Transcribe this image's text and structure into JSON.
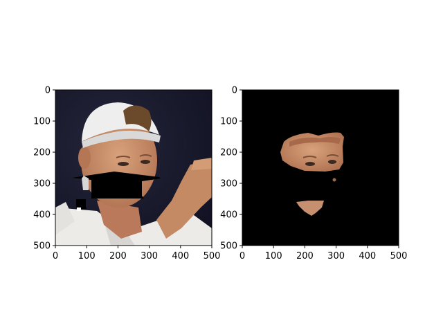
{
  "chart_data": [
    {
      "type": "image",
      "title": "",
      "xlabel": "",
      "ylabel": "",
      "xlim": [
        0,
        500
      ],
      "ylim": [
        500,
        0
      ],
      "x_ticks": [
        "0",
        "100",
        "200",
        "300",
        "400",
        "500"
      ],
      "y_ticks": [
        "0",
        "100",
        "200",
        "300",
        "400",
        "500"
      ],
      "image_content": "masked-face-photo",
      "grid": false
    },
    {
      "type": "image",
      "title": "",
      "xlabel": "",
      "ylabel": "",
      "xlim": [
        0,
        500
      ],
      "ylim": [
        500,
        0
      ],
      "x_ticks": [
        "0",
        "100",
        "200",
        "300",
        "400",
        "500"
      ],
      "y_ticks": [
        "0",
        "100",
        "200",
        "300",
        "400",
        "500"
      ],
      "image_content": "face-region-on-black",
      "grid": false
    }
  ],
  "colors": {
    "background": "#ffffff",
    "axis": "#000000",
    "mask": "#000000",
    "skin": "#c8906c",
    "shirt": "#ecebe8",
    "photo_bg": "#18182c"
  }
}
